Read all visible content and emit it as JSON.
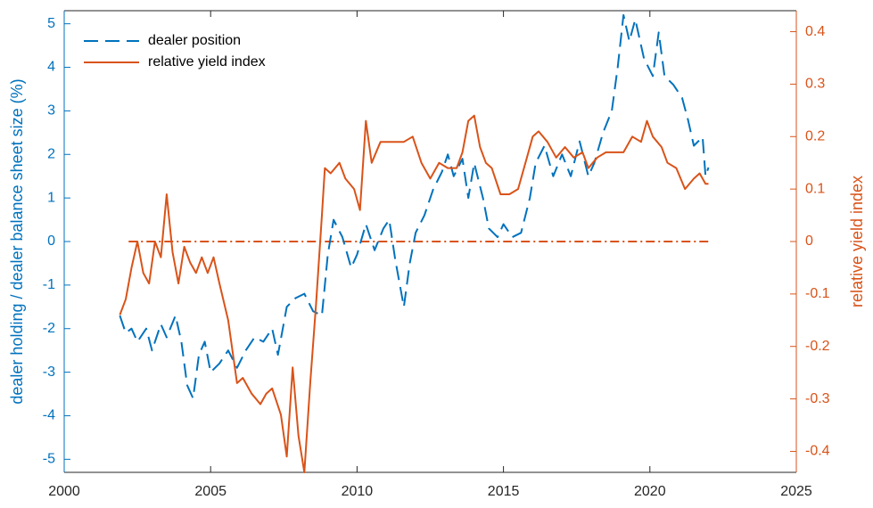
{
  "chart_data": {
    "type": "line",
    "y_label": "dealer holding / dealer balance sheet size (%)",
    "y2_label": "relative yield index",
    "xlim": [
      2000,
      2025
    ],
    "xticks": [
      2000,
      2005,
      2010,
      2015,
      2020,
      2025
    ],
    "ylim": [
      -5.3,
      5.3
    ],
    "yticks": [
      -5,
      -4,
      -3,
      -2,
      -1,
      0,
      1,
      2,
      3,
      4,
      5
    ],
    "y2lim": [
      -0.44,
      0.44
    ],
    "y2ticks": [
      -0.4,
      -0.3,
      -0.2,
      -0.1,
      0,
      0.1,
      0.2,
      0.3,
      0.4
    ],
    "legend": "upper left",
    "reference_line": {
      "axis": "y2",
      "value": 0,
      "x": [
        2002.2,
        2022.0
      ],
      "color": "#d95319"
    },
    "series": [
      {
        "name": "dealer position",
        "color": "#0072bd",
        "axis": "y",
        "style": "dashed",
        "x": [
          2001.9,
          2002.1,
          2002.3,
          2002.5,
          2002.8,
          2003.0,
          2003.3,
          2003.5,
          2003.8,
          2004.0,
          2004.2,
          2004.4,
          2004.6,
          2004.8,
          2005.0,
          2005.3,
          2005.6,
          2005.9,
          2006.2,
          2006.5,
          2006.8,
          2007.1,
          2007.3,
          2007.6,
          2007.9,
          2008.2,
          2008.5,
          2008.8,
          2009.0,
          2009.2,
          2009.5,
          2009.8,
          2010.0,
          2010.3,
          2010.6,
          2010.9,
          2011.1,
          2011.3,
          2011.6,
          2011.8,
          2012.0,
          2012.3,
          2012.6,
          2012.9,
          2013.1,
          2013.3,
          2013.6,
          2013.8,
          2014.0,
          2014.3,
          2014.5,
          2014.8,
          2015.0,
          2015.3,
          2015.6,
          2015.9,
          2016.1,
          2016.4,
          2016.7,
          2017.0,
          2017.3,
          2017.6,
          2017.9,
          2018.1,
          2018.4,
          2018.7,
          2018.9,
          2019.1,
          2019.3,
          2019.5,
          2019.8,
          2020.1,
          2020.3,
          2020.5,
          2020.8,
          2021.1,
          2021.3,
          2021.5,
          2021.8,
          2021.9,
          2022.0
        ],
        "values": [
          -1.7,
          -2.1,
          -2.0,
          -2.3,
          -2.0,
          -2.5,
          -1.9,
          -2.2,
          -1.7,
          -2.3,
          -3.3,
          -3.6,
          -2.6,
          -2.3,
          -3.0,
          -2.8,
          -2.5,
          -2.9,
          -2.5,
          -2.2,
          -2.3,
          -2.0,
          -2.6,
          -1.5,
          -1.3,
          -1.2,
          -1.6,
          -1.7,
          -0.3,
          0.5,
          0.1,
          -0.6,
          -0.3,
          0.4,
          -0.2,
          0.3,
          0.5,
          -0.4,
          -1.5,
          -0.5,
          0.2,
          0.6,
          1.2,
          1.6,
          2.0,
          1.5,
          1.9,
          1.0,
          1.8,
          1.0,
          0.3,
          0.1,
          0.4,
          0.1,
          0.2,
          1.0,
          1.8,
          2.2,
          1.5,
          2.0,
          1.5,
          2.3,
          1.5,
          1.8,
          2.5,
          3.0,
          4.0,
          5.2,
          4.6,
          5.1,
          4.2,
          3.8,
          4.8,
          3.8,
          3.6,
          3.3,
          2.8,
          2.2,
          2.4,
          1.5,
          1.7
        ]
      },
      {
        "name": "relative yield index",
        "color": "#d95319",
        "axis": "y2",
        "style": "solid",
        "x": [
          2001.9,
          2002.1,
          2002.3,
          2002.5,
          2002.7,
          2002.9,
          2003.1,
          2003.3,
          2003.5,
          2003.7,
          2003.9,
          2004.1,
          2004.3,
          2004.5,
          2004.7,
          2004.9,
          2005.1,
          2005.3,
          2005.6,
          2005.9,
          2006.1,
          2006.4,
          2006.7,
          2006.9,
          2007.1,
          2007.4,
          2007.6,
          2007.8,
          2008.0,
          2008.2,
          2008.4,
          2008.6,
          2008.8,
          2008.9,
          2009.1,
          2009.4,
          2009.6,
          2009.9,
          2010.1,
          2010.3,
          2010.5,
          2010.8,
          2011.1,
          2011.4,
          2011.6,
          2011.9,
          2012.2,
          2012.5,
          2012.8,
          2013.1,
          2013.4,
          2013.6,
          2013.8,
          2014.0,
          2014.2,
          2014.4,
          2014.6,
          2014.9,
          2015.2,
          2015.5,
          2015.8,
          2016.0,
          2016.2,
          2016.5,
          2016.8,
          2017.1,
          2017.4,
          2017.7,
          2017.9,
          2018.2,
          2018.5,
          2018.8,
          2019.1,
          2019.4,
          2019.7,
          2019.9,
          2020.1,
          2020.4,
          2020.6,
          2020.9,
          2021.2,
          2021.5,
          2021.7,
          2021.9,
          2022.0
        ],
        "values": [
          -0.14,
          -0.11,
          -0.05,
          0.0,
          -0.06,
          -0.08,
          0.0,
          -0.03,
          0.09,
          -0.02,
          -0.08,
          -0.01,
          -0.04,
          -0.06,
          -0.03,
          -0.06,
          -0.03,
          -0.08,
          -0.15,
          -0.27,
          -0.26,
          -0.29,
          -0.31,
          -0.29,
          -0.28,
          -0.33,
          -0.41,
          -0.24,
          -0.37,
          -0.44,
          -0.27,
          -0.12,
          0.05,
          0.14,
          0.13,
          0.15,
          0.12,
          0.1,
          0.06,
          0.23,
          0.15,
          0.19,
          0.19,
          0.19,
          0.19,
          0.2,
          0.15,
          0.12,
          0.15,
          0.14,
          0.14,
          0.17,
          0.23,
          0.24,
          0.18,
          0.15,
          0.14,
          0.09,
          0.09,
          0.1,
          0.16,
          0.2,
          0.21,
          0.19,
          0.16,
          0.18,
          0.16,
          0.17,
          0.14,
          0.16,
          0.17,
          0.17,
          0.17,
          0.2,
          0.19,
          0.23,
          0.2,
          0.18,
          0.15,
          0.14,
          0.1,
          0.12,
          0.13,
          0.11,
          0.11
        ]
      }
    ]
  }
}
